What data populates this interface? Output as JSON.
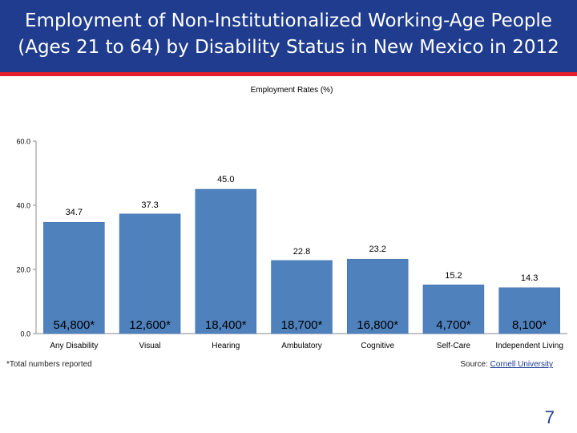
{
  "slide": {
    "title": "Employment of Non-Institutionalized Working-Age People\n(Ages 21 to 64) by Disability Status in New Mexico in 2012",
    "footnote": "*Total numbers reported",
    "source_label": "Source: ",
    "source_link": "Cornell University",
    "page_number": "7"
  },
  "colors": {
    "header": "#1f3c8f",
    "accent": "#e41e2b",
    "bar": "#4f81bd",
    "bar_border": "#3a6aa6"
  },
  "chart_data": {
    "type": "bar",
    "title": "Employment Rates (%)",
    "categories": [
      "Any Disability",
      "Visual",
      "Hearing",
      "Ambulatory",
      "Cognitive",
      "Self-Care",
      "Independent Living"
    ],
    "values": [
      34.7,
      37.3,
      45.0,
      22.8,
      23.2,
      15.2,
      14.3
    ],
    "value_labels": [
      "34.7",
      "37.3",
      "45.0",
      "22.8",
      "23.2",
      "15.2",
      "14.3"
    ],
    "totals": [
      "54,800*",
      "12,600*",
      "18,400*",
      "18,700*",
      "16,800*",
      "4,700*",
      "8,100*"
    ],
    "yticks": [
      "0.0",
      "20.0",
      "40.0",
      "60.0"
    ],
    "ylim": [
      0,
      60
    ],
    "grid": false,
    "legend": "none"
  }
}
